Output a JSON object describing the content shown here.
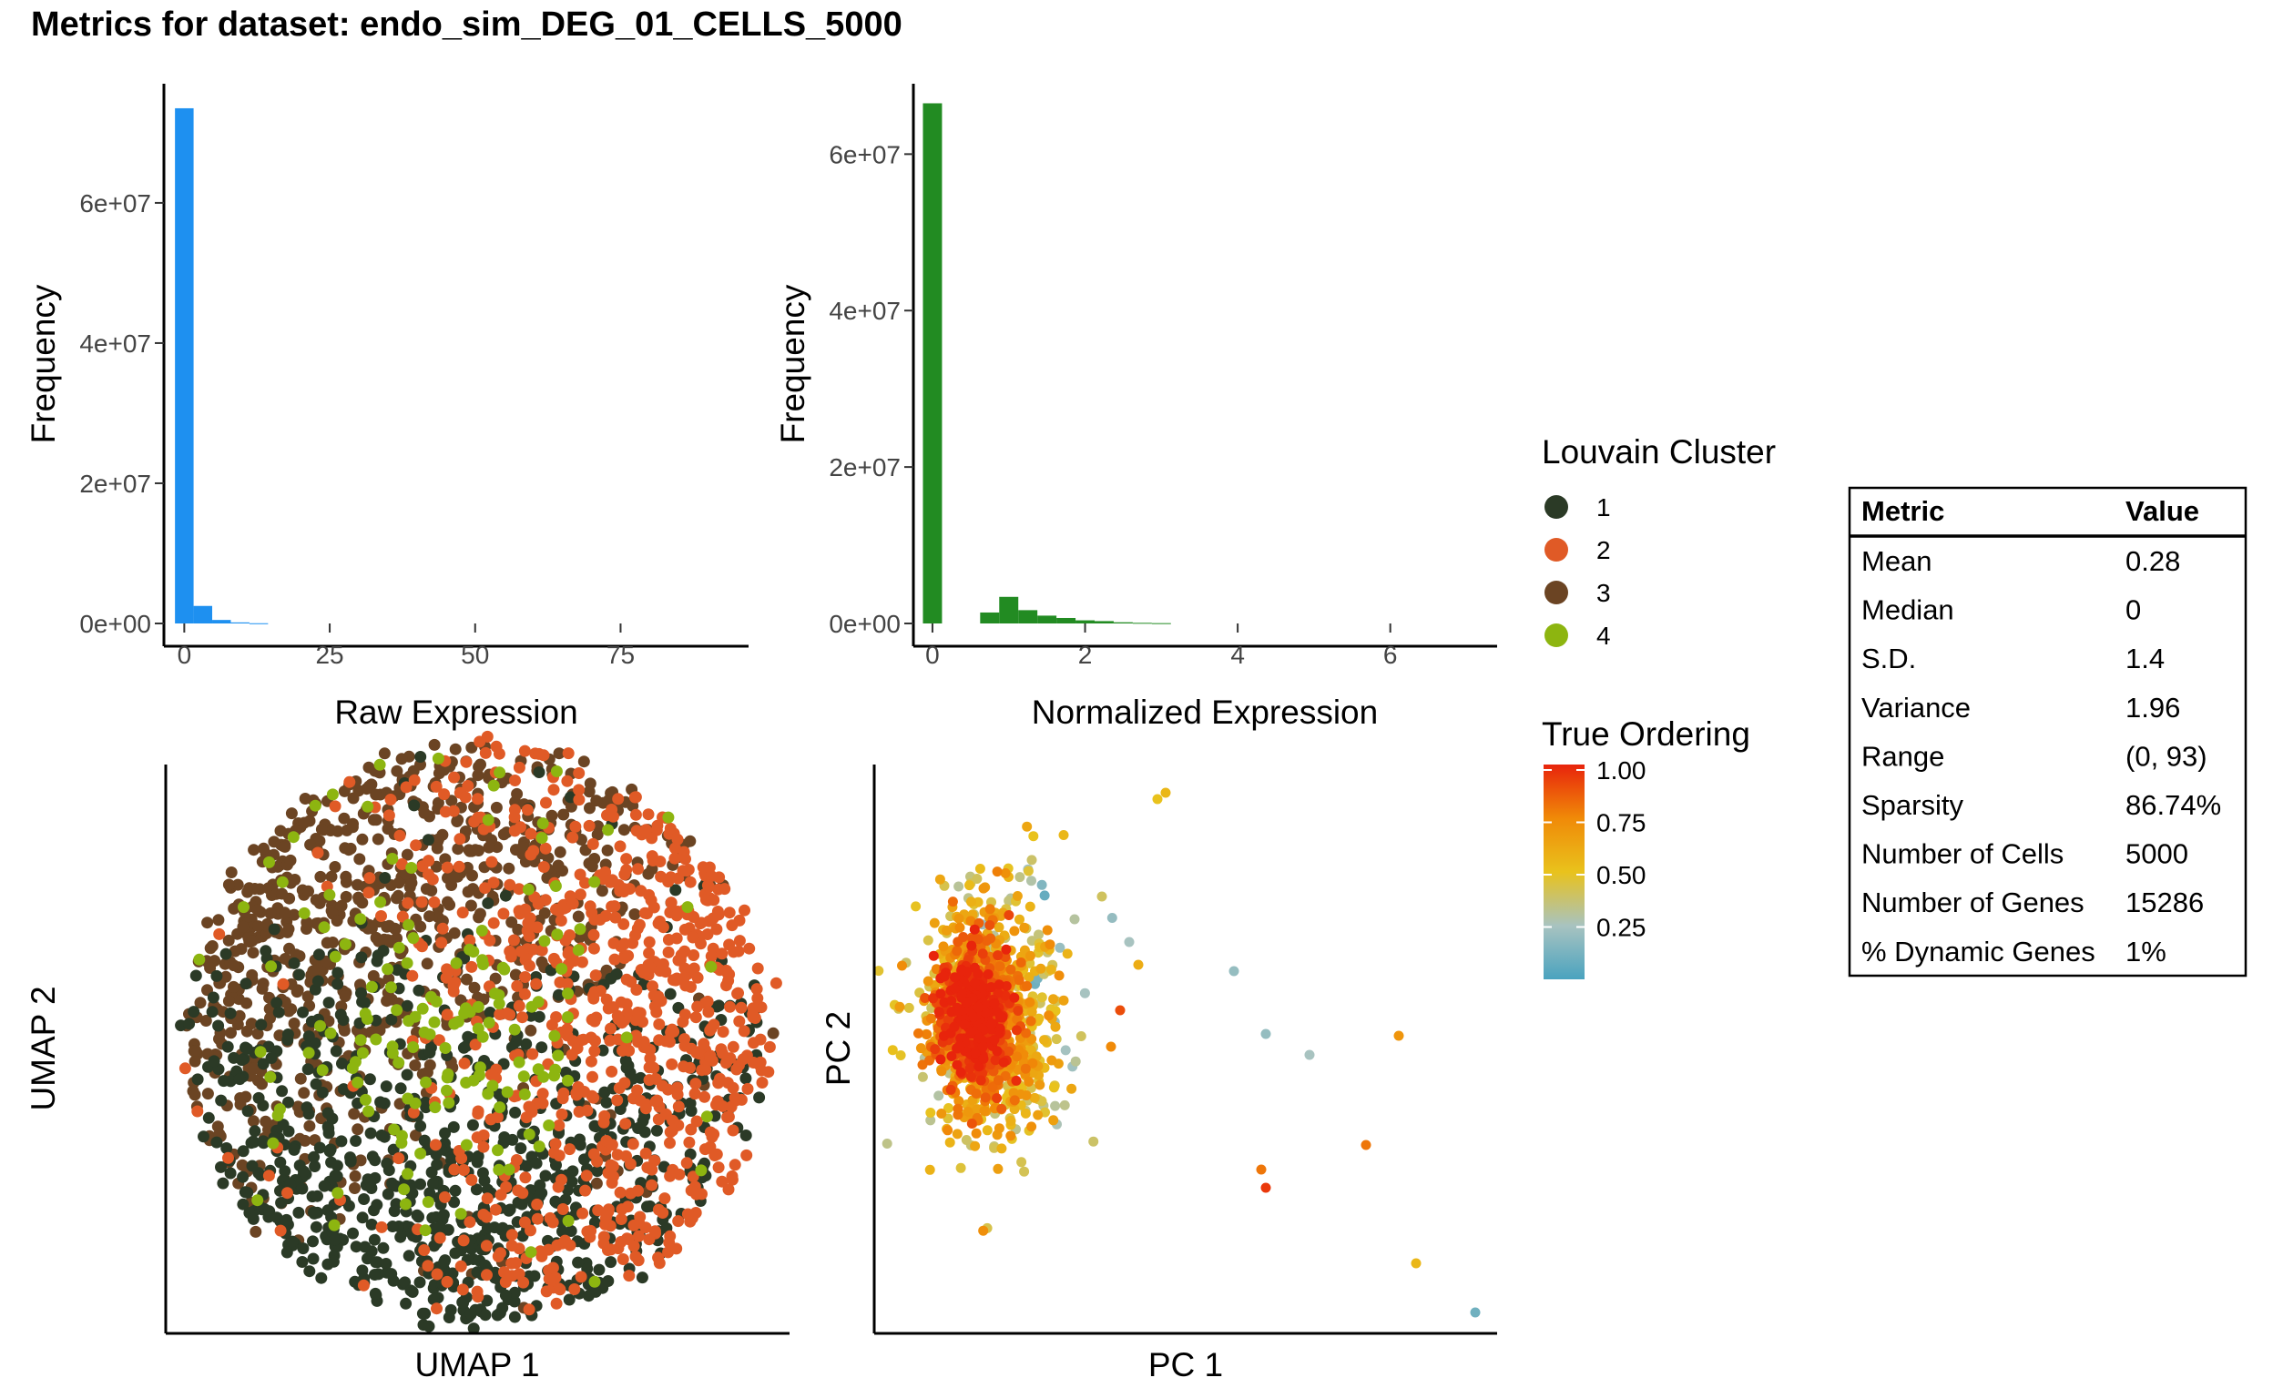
{
  "title": "Metrics for dataset: endo_sim_DEG_01_CELLS_5000",
  "chart_data": [
    {
      "type": "bar",
      "name": "raw-histogram",
      "xlabel": "Raw Expression",
      "ylabel": "Frequency",
      "color": "#1E90F0",
      "xlim": [
        -3.5,
        97
      ],
      "ylim": [
        0,
        77000000
      ],
      "x_ticks": [
        0,
        25,
        50,
        75
      ],
      "x_tick_labels": [
        "0",
        "25",
        "50",
        "75"
      ],
      "y_ticks": [
        0,
        20000000,
        40000000,
        60000000
      ],
      "y_tick_labels": [
        "0e+00",
        "2e+07",
        "4e+07",
        "6e+07"
      ],
      "bin_width": 3.2,
      "bins": [
        {
          "x0": -1.6,
          "x1": 1.6,
          "value": 73500000
        },
        {
          "x0": 1.6,
          "x1": 4.8,
          "value": 2500000
        },
        {
          "x0": 4.8,
          "x1": 8.0,
          "value": 500000
        },
        {
          "x0": 8.0,
          "x1": 11.2,
          "value": 150000
        },
        {
          "x0": 11.2,
          "x1": 14.4,
          "value": 30000
        }
      ]
    },
    {
      "type": "bar",
      "name": "normalized-histogram",
      "xlabel": "Normalized Expression",
      "ylabel": "Frequency",
      "color": "#228B22",
      "xlim": [
        -0.25,
        7.4
      ],
      "ylim": [
        0,
        69000000
      ],
      "x_ticks": [
        0,
        2,
        4,
        6
      ],
      "x_tick_labels": [
        "0",
        "2",
        "4",
        "6"
      ],
      "y_ticks": [
        0,
        20000000,
        40000000,
        60000000
      ],
      "y_tick_labels": [
        "0e+00",
        "2e+07",
        "4e+07",
        "6e+07"
      ],
      "bins": [
        {
          "x0": -0.125,
          "x1": 0.125,
          "value": 66500000
        },
        {
          "x0": 0.625,
          "x1": 0.875,
          "value": 1400000
        },
        {
          "x0": 0.875,
          "x1": 1.125,
          "value": 3400000
        },
        {
          "x0": 1.125,
          "x1": 1.375,
          "value": 1700000
        },
        {
          "x0": 1.375,
          "x1": 1.625,
          "value": 1000000
        },
        {
          "x0": 1.625,
          "x1": 1.875,
          "value": 700000
        },
        {
          "x0": 1.875,
          "x1": 2.125,
          "value": 400000
        },
        {
          "x0": 2.125,
          "x1": 2.375,
          "value": 300000
        },
        {
          "x0": 2.375,
          "x1": 2.625,
          "value": 150000
        },
        {
          "x0": 2.625,
          "x1": 2.875,
          "value": 80000
        },
        {
          "x0": 2.875,
          "x1": 3.125,
          "value": 40000
        }
      ]
    },
    {
      "type": "scatter",
      "name": "umap-scatter",
      "xlabel": "UMAP 1",
      "ylabel": "UMAP 2",
      "color_by": "Louvain Cluster",
      "point_count": 5000,
      "shape": "approximately circular cloud; cluster 4 concentrated centrally, cluster 2 on the right, cluster 3 top-left, cluster 1 bottom",
      "axis_ticks": "none"
    },
    {
      "type": "scatter",
      "name": "pca-scatter",
      "xlabel": "PC 1",
      "ylabel": "PC 2",
      "color_by": "True Ordering",
      "point_count": 5000,
      "shape": "dense cluster at the left with a sparse tail of outliers to the lower-right",
      "axis_ticks": "none"
    }
  ],
  "legend_cluster": {
    "title": "Louvain Cluster",
    "items": [
      {
        "label": "1",
        "color": "#2B3A26"
      },
      {
        "label": "2",
        "color": "#E05A26"
      },
      {
        "label": "3",
        "color": "#6B4423"
      },
      {
        "label": "4",
        "color": "#8DB510"
      }
    ]
  },
  "legend_ordering": {
    "title": "True Ordering",
    "labels": [
      "1.00",
      "0.75",
      "0.50",
      "0.25"
    ],
    "values": [
      1.0,
      0.75,
      0.5,
      0.25
    ],
    "gradient": [
      "#E8240C",
      "#F08A08",
      "#E9C21C",
      "#A8C3C0",
      "#4AA3BF"
    ]
  },
  "metrics_table": {
    "header": {
      "metric": "Metric",
      "value": "Value"
    },
    "rows": [
      {
        "metric": "Mean",
        "value": "0.28"
      },
      {
        "metric": "Median",
        "value": "0"
      },
      {
        "metric": "S.D.",
        "value": "1.4"
      },
      {
        "metric": "Variance",
        "value": "1.96"
      },
      {
        "metric": "Range",
        "value": "(0, 93)"
      },
      {
        "metric": "Sparsity",
        "value": "86.74%"
      },
      {
        "metric": "Number of Cells",
        "value": "5000"
      },
      {
        "metric": "Number of Genes",
        "value": "15286"
      },
      {
        "metric": "% Dynamic Genes",
        "value": "1%"
      }
    ]
  }
}
